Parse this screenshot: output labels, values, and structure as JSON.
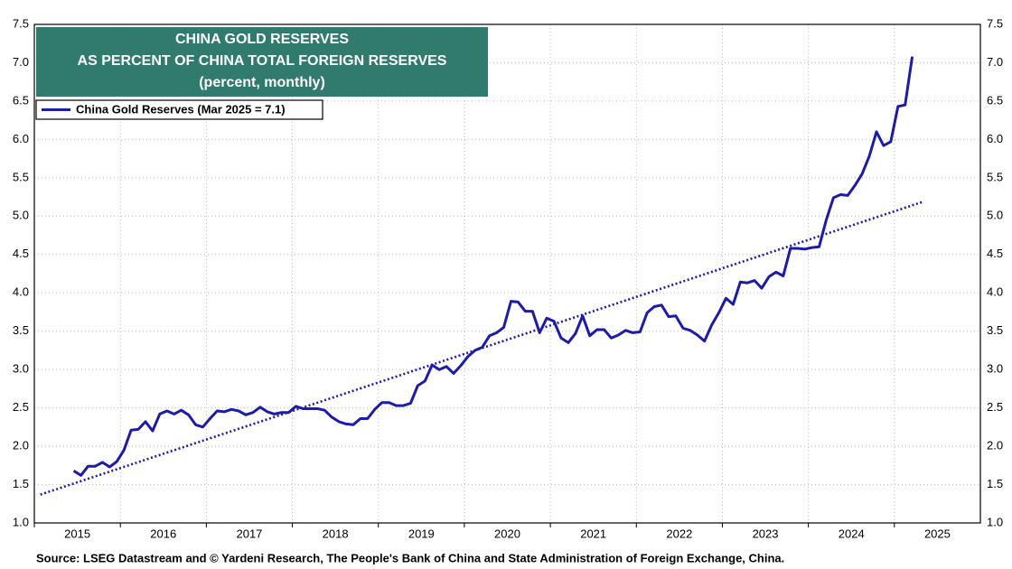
{
  "chart_data": {
    "type": "line",
    "title_lines": [
      "CHINA GOLD RESERVES",
      "AS PERCENT OF CHINA TOTAL FOREIGN RESERVES",
      "(percent, monthly)"
    ],
    "source": "Source: LSEG Datastream and © Yardeni Research, The People's Bank of China and State Administration of Foreign Exchange, China.",
    "xlim": [
      2015,
      2026
    ],
    "xticks": [
      2015,
      2016,
      2017,
      2018,
      2019,
      2020,
      2021,
      2022,
      2023,
      2024,
      2025
    ],
    "ylim": [
      1,
      7.5
    ],
    "yticks": [
      {
        "value": 1,
        "label": "1.0"
      },
      1.5,
      {
        "value": 2,
        "label": "2.0"
      },
      2.5,
      {
        "value": 3,
        "label": "3.0"
      },
      3.5,
      {
        "value": 4,
        "label": "4.0"
      },
      4.5,
      {
        "value": 5,
        "label": "5.0"
      },
      5.5,
      {
        "value": 6,
        "label": "6.0"
      },
      6.5,
      {
        "value": 7,
        "label": "7.0"
      },
      7.5
    ],
    "grid": true,
    "legend": "upper left",
    "series": [
      {
        "name": "China Gold Reserves (Mar 2025 = 7.1)",
        "color": "#1c1ca8",
        "x": [
          2015.458,
          2015.542,
          2015.625,
          2015.708,
          2015.792,
          2015.875,
          2015.958,
          2016.042,
          2016.125,
          2016.208,
          2016.292,
          2016.375,
          2016.458,
          2016.542,
          2016.625,
          2016.708,
          2016.792,
          2016.875,
          2016.958,
          2017.042,
          2017.125,
          2017.208,
          2017.292,
          2017.375,
          2017.458,
          2017.542,
          2017.625,
          2017.708,
          2017.792,
          2017.875,
          2017.958,
          2018.042,
          2018.125,
          2018.208,
          2018.292,
          2018.375,
          2018.458,
          2018.542,
          2018.625,
          2018.708,
          2018.792,
          2018.875,
          2018.958,
          2019.042,
          2019.125,
          2019.208,
          2019.292,
          2019.375,
          2019.458,
          2019.542,
          2019.625,
          2019.708,
          2019.792,
          2019.875,
          2019.958,
          2020.042,
          2020.125,
          2020.208,
          2020.292,
          2020.375,
          2020.458,
          2020.542,
          2020.625,
          2020.708,
          2020.792,
          2020.875,
          2020.958,
          2021.042,
          2021.125,
          2021.208,
          2021.292,
          2021.375,
          2021.458,
          2021.542,
          2021.625,
          2021.708,
          2021.792,
          2021.875,
          2021.958,
          2022.042,
          2022.125,
          2022.208,
          2022.292,
          2022.375,
          2022.458,
          2022.542,
          2022.625,
          2022.708,
          2022.792,
          2022.875,
          2022.958,
          2023.042,
          2023.125,
          2023.208,
          2023.292,
          2023.375,
          2023.458,
          2023.542,
          2023.625,
          2023.708,
          2023.792,
          2023.875,
          2023.958,
          2024.042,
          2024.125,
          2024.208,
          2024.292,
          2024.375,
          2024.458,
          2024.542,
          2024.625,
          2024.708,
          2024.792,
          2024.875,
          2024.958,
          2025.042,
          2025.125,
          2025.208
        ],
        "values": [
          1.68,
          1.62,
          1.74,
          1.74,
          1.79,
          1.73,
          1.8,
          1.95,
          2.21,
          2.22,
          2.32,
          2.2,
          2.42,
          2.46,
          2.42,
          2.47,
          2.41,
          2.28,
          2.25,
          2.36,
          2.46,
          2.45,
          2.48,
          2.46,
          2.41,
          2.44,
          2.51,
          2.45,
          2.42,
          2.44,
          2.44,
          2.52,
          2.49,
          2.49,
          2.49,
          2.47,
          2.38,
          2.32,
          2.29,
          2.28,
          2.36,
          2.36,
          2.48,
          2.57,
          2.57,
          2.53,
          2.53,
          2.56,
          2.79,
          2.85,
          3.06,
          3.0,
          3.04,
          2.95,
          3.05,
          3.17,
          3.25,
          3.29,
          3.44,
          3.48,
          3.55,
          3.89,
          3.88,
          3.76,
          3.76,
          3.48,
          3.67,
          3.63,
          3.41,
          3.35,
          3.47,
          3.7,
          3.44,
          3.52,
          3.52,
          3.41,
          3.45,
          3.51,
          3.48,
          3.49,
          3.74,
          3.82,
          3.84,
          3.69,
          3.7,
          3.54,
          3.51,
          3.45,
          3.37,
          3.58,
          3.74,
          3.93,
          3.85,
          4.14,
          4.13,
          4.16,
          4.06,
          4.21,
          4.27,
          4.22,
          4.58,
          4.58,
          4.57,
          4.59,
          4.6,
          4.95,
          5.24,
          5.28,
          5.27,
          5.4,
          5.55,
          5.78,
          6.1,
          5.92,
          5.97,
          6.43,
          6.45,
          7.08
        ]
      }
    ],
    "trend_line": {
      "color": "#1c1ca8",
      "x": [
        2015.07,
        2025.34
      ],
      "values": [
        1.37,
        5.19
      ]
    }
  }
}
